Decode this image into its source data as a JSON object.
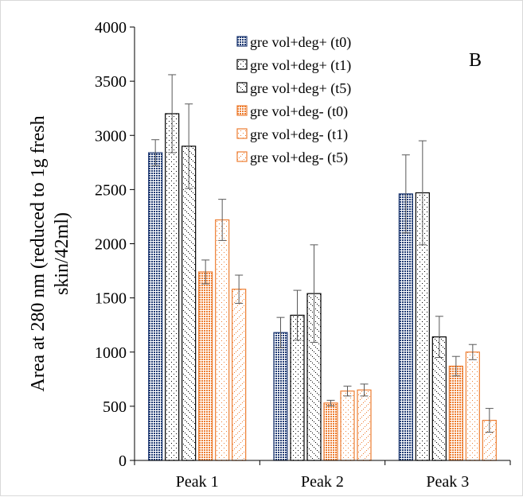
{
  "chart_data": {
    "type": "bar",
    "title": "",
    "panel_label": "B",
    "ylabel_lines": [
      "Area at 280 nm (reduced to 1g fresh",
      "skin/42ml)"
    ],
    "xlabel": "",
    "ylim": [
      0,
      4000
    ],
    "yticks": [
      0,
      500,
      1000,
      1500,
      2000,
      2500,
      3000,
      3500,
      4000
    ],
    "grid": false,
    "legend_position": "top-right",
    "categories": [
      "Peak 1",
      "Peak 2",
      "Peak 3"
    ],
    "series": [
      {
        "name": "gre vol+deg+ (t0)",
        "color": "#1f3a73",
        "pattern": "dense-dots",
        "values": [
          2840,
          1180,
          2460
        ],
        "errors": [
          120,
          140,
          360
        ]
      },
      {
        "name": "gre vol+deg+ (t1)",
        "color": "#000000",
        "pattern": "sparse-dots",
        "values": [
          3200,
          1340,
          2470
        ],
        "errors": [
          360,
          230,
          480
        ]
      },
      {
        "name": "gre vol+deg+ (t5)",
        "color": "#000000",
        "pattern": "diagonal-dots",
        "values": [
          2900,
          1540,
          1140
        ],
        "errors": [
          390,
          450,
          190
        ]
      },
      {
        "name": "gre vol+deg- (t0)",
        "color": "#ed7d31",
        "pattern": "dense-dots",
        "values": [
          1740,
          530,
          870
        ],
        "errors": [
          110,
          25,
          90
        ]
      },
      {
        "name": "gre vol+deg- (t1)",
        "color": "#ed7d31",
        "pattern": "sparse-dots",
        "values": [
          2220,
          640,
          1000
        ],
        "errors": [
          190,
          45,
          70
        ]
      },
      {
        "name": "gre vol+deg- (t5)",
        "color": "#ed7d31",
        "pattern": "diagonal-dots",
        "values": [
          1580,
          650,
          370
        ],
        "errors": [
          130,
          55,
          110
        ]
      }
    ]
  }
}
